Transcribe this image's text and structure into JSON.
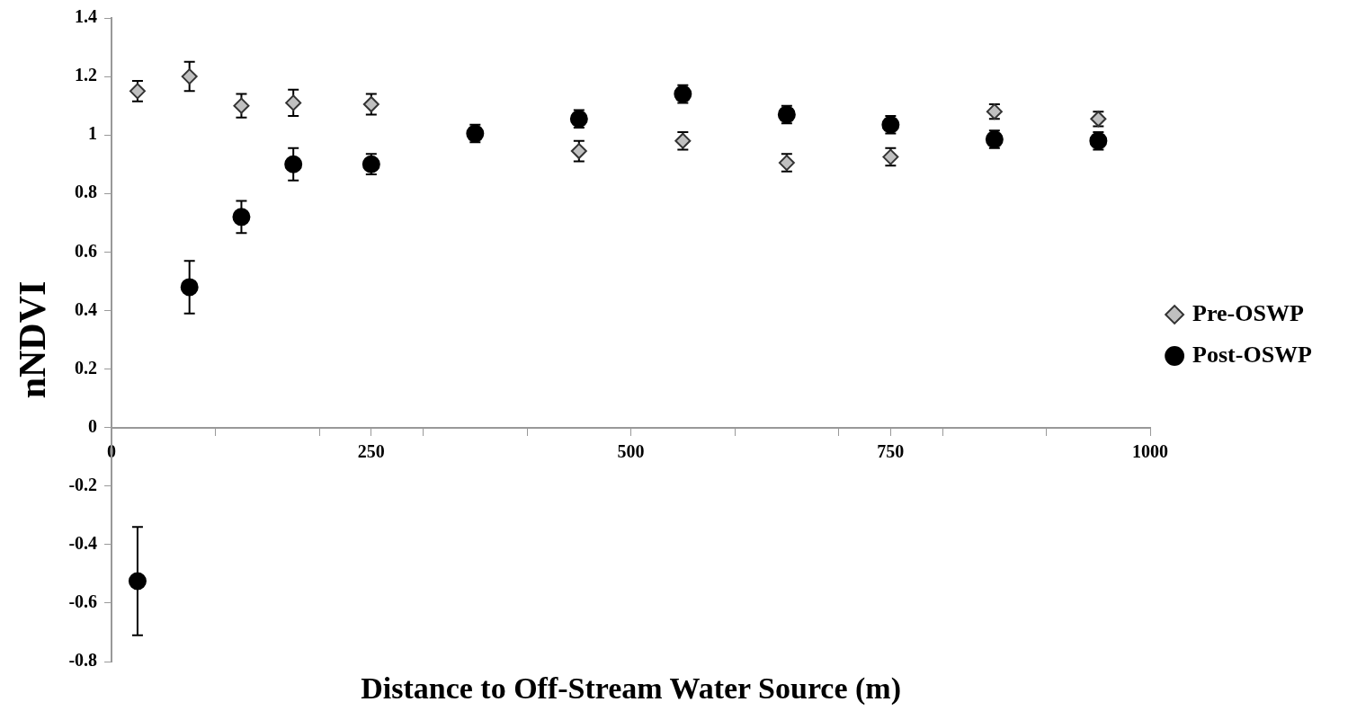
{
  "chart_data": {
    "type": "scatter",
    "xlabel": "Distance to Off-Stream Water Source (m)",
    "ylabel": "nNDVI",
    "x": [
      25,
      75,
      125,
      175,
      250,
      350,
      450,
      550,
      650,
      750,
      850,
      950
    ],
    "series": [
      {
        "name": "Pre-OSWP",
        "color": "#c0c0c0",
        "marker": "diamond",
        "values": [
          1.15,
          1.2,
          1.1,
          1.11,
          1.105,
          null,
          0.945,
          0.98,
          0.905,
          0.925,
          1.08,
          1.055
        ],
        "errors": [
          0.035,
          0.05,
          0.04,
          0.045,
          0.035,
          null,
          0.035,
          0.03,
          0.03,
          0.03,
          0.025,
          0.025
        ]
      },
      {
        "name": "Post-OSWP",
        "color": "#000000",
        "marker": "circle",
        "values": [
          -0.525,
          0.48,
          0.72,
          0.9,
          0.9,
          1.005,
          1.055,
          1.14,
          1.07,
          1.035,
          0.985,
          0.98
        ],
        "errors": [
          0.185,
          0.09,
          0.055,
          0.055,
          0.035,
          0.03,
          0.03,
          0.03,
          0.03,
          0.03,
          0.03,
          0.03
        ]
      }
    ],
    "xlim": [
      0,
      1000
    ],
    "xticks": [
      0,
      {
        "value": 100,
        "label": null
      },
      {
        "value": 200,
        "label": null
      },
      250,
      {
        "value": 300,
        "label": null
      },
      {
        "value": 400,
        "label": null
      },
      500,
      {
        "value": 600,
        "label": null
      },
      {
        "value": 700,
        "label": null
      },
      750,
      {
        "value": 800,
        "label": null
      },
      {
        "value": 900,
        "label": null
      },
      1000
    ],
    "ylim": [
      -0.8,
      1.4
    ],
    "yticks": [
      -0.8,
      -0.6,
      -0.4,
      -0.2,
      0,
      0.2,
      0.4,
      0.6,
      0.8,
      1,
      1.2,
      1.4
    ],
    "grid": false,
    "legend": "right"
  }
}
